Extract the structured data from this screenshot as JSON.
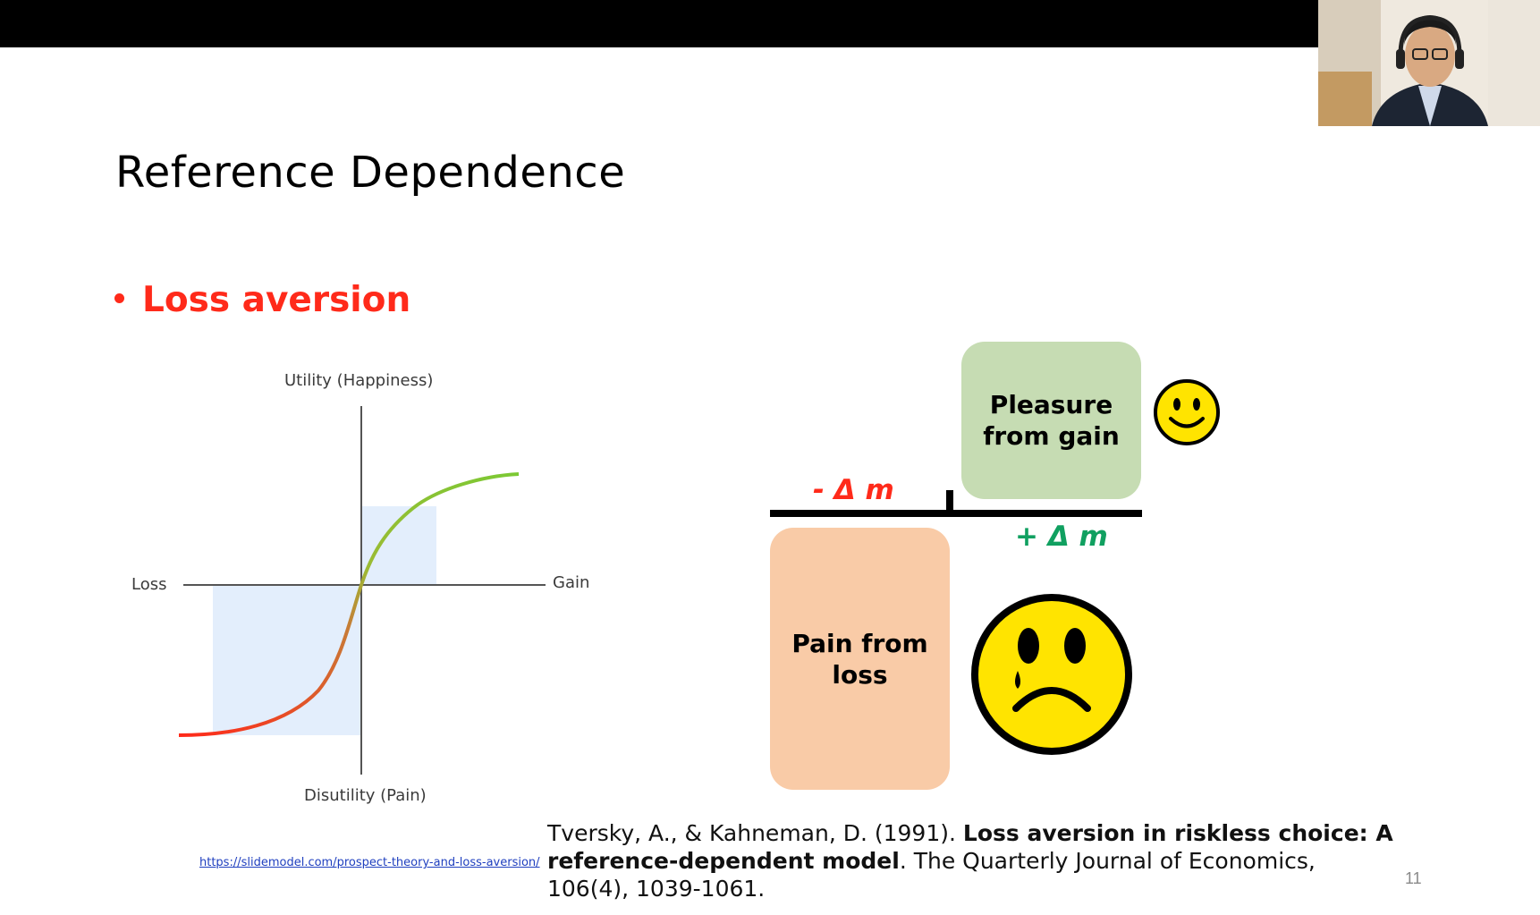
{
  "slide": {
    "title": "Reference Dependence",
    "bullet": "Loss aversion",
    "page_number": "11"
  },
  "chart": {
    "y_top_label": "Utility (Happiness)",
    "y_bottom_label": "Disutility (Pain)",
    "x_left_label": "Loss",
    "x_right_label": "Gain",
    "source_url": "https://slidemodel.com/prospect-theory-and-loss-aversion/",
    "colors": {
      "curve_gain": "#7cc934",
      "curve_loss": "#ff2a1a",
      "shade": "#e3eefc",
      "axis": "#444444"
    }
  },
  "diagram": {
    "gain_box": "Pleasure from gain",
    "loss_box": "Pain from loss",
    "minus_delta": "- Δ m",
    "plus_delta": "+ Δ m",
    "happy_face": "smiley-face-icon",
    "sad_face": "crying-face-icon",
    "colors": {
      "gain_box": "#c6dcb3",
      "loss_box": "#f9cba7",
      "minus": "#ff2a1a",
      "plus": "#10a060",
      "face": "#ffe400"
    }
  },
  "citation": {
    "authors": "Tversky, A., & Kahneman, D. (1991). ",
    "title": "Loss aversion in riskless choice: A reference-dependent model",
    "rest": ". The Quarterly Journal of Economics, 106(4), 1039-1061."
  },
  "webcam": {
    "icon": "presenter-video-feed"
  }
}
